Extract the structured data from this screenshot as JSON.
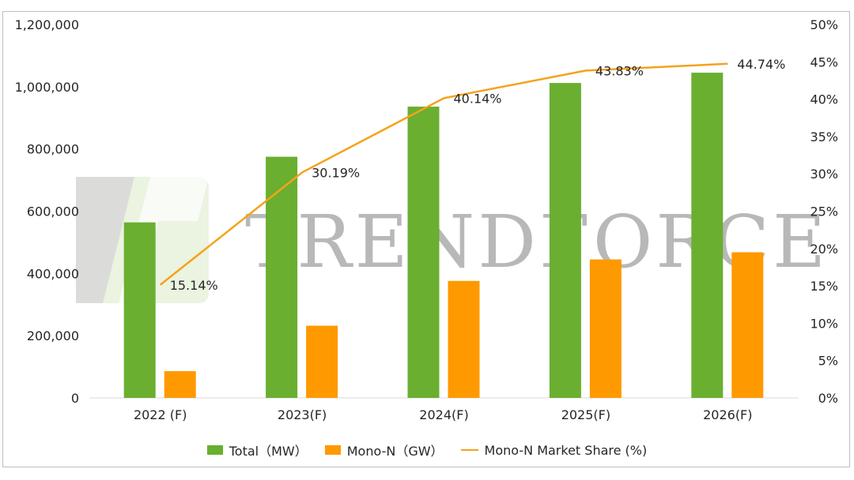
{
  "chart_data": {
    "type": "bar",
    "categories": [
      "2022 (F)",
      "2023(F)",
      "2024(F)",
      "2025(F)",
      "2026(F)"
    ],
    "series": [
      {
        "name": "Total（MW）",
        "type": "bar",
        "axis": "left",
        "color": "#6aaf30",
        "values": [
          564000,
          775000,
          936000,
          1012000,
          1045000
        ]
      },
      {
        "name": "Mono-N（GW）",
        "type": "bar",
        "axis": "left",
        "color": "#ff9900",
        "values": [
          86000,
          232000,
          376000,
          445000,
          468000
        ]
      },
      {
        "name": "Mono-N Market Share (%)",
        "type": "line",
        "axis": "right",
        "color": "#f5a21b",
        "values": [
          15.14,
          30.19,
          40.14,
          43.83,
          44.74
        ],
        "labels": [
          "15.14%",
          "30.19%",
          "40.14%",
          "43.83%",
          "44.74%"
        ]
      }
    ],
    "ylim": [
      0,
      1200000
    ],
    "y_ticks": [
      "0",
      "200,000",
      "400,000",
      "600,000",
      "800,000",
      "1,000,000",
      "1,200,000"
    ],
    "y2lim": [
      0,
      50
    ],
    "y2_ticks": [
      "0%",
      "5%",
      "10%",
      "15%",
      "20%",
      "25%",
      "30%",
      "35%",
      "40%",
      "45%",
      "50%"
    ],
    "grid": false,
    "legend": "bottom",
    "watermark": "TRENDFORCE"
  }
}
